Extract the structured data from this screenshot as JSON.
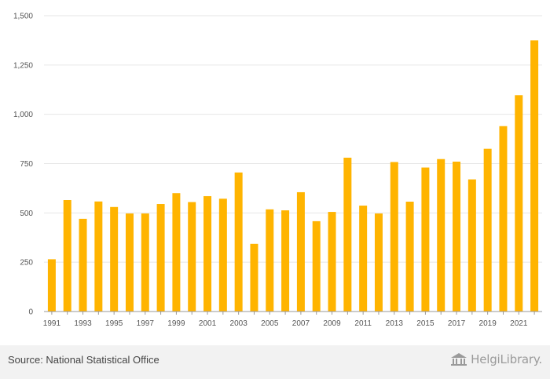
{
  "chart_data": {
    "type": "bar",
    "categories": [
      "1991",
      "1992",
      "1993",
      "1994",
      "1995",
      "1996",
      "1997",
      "1998",
      "1999",
      "2000",
      "2001",
      "2002",
      "2003",
      "2004",
      "2005",
      "2006",
      "2007",
      "2008",
      "2009",
      "2010",
      "2011",
      "2012",
      "2013",
      "2014",
      "2015",
      "2016",
      "2017",
      "2018",
      "2019",
      "2020",
      "2021",
      "2022"
    ],
    "values": [
      265,
      565,
      470,
      558,
      530,
      497,
      497,
      545,
      600,
      555,
      585,
      572,
      705,
      343,
      518,
      513,
      605,
      458,
      505,
      780,
      537,
      497,
      758,
      557,
      730,
      773,
      760,
      670,
      825,
      940,
      1097,
      1375
    ],
    "x_tick_labels": [
      "1991",
      "1993",
      "1995",
      "1997",
      "1999",
      "2001",
      "2003",
      "2005",
      "2007",
      "2009",
      "2011",
      "2013",
      "2015",
      "2017",
      "2019",
      "2021"
    ],
    "y_ticks": [
      0,
      250,
      500,
      750,
      1000,
      1250,
      1500
    ],
    "y_tick_labels": [
      "0",
      "250",
      "500",
      "750",
      "1,000",
      "1,250",
      "1,500"
    ],
    "ylim": [
      0,
      1500
    ],
    "grid": true,
    "bar_color": "#ffb400",
    "title": "",
    "xlabel": "",
    "ylabel": ""
  },
  "footer": {
    "source": "Source: National Statistical Office",
    "brand": "HelgiLibrary."
  },
  "colors": {
    "grid": "#e6e6e6",
    "axis": "#999999",
    "footer_bg": "#f2f2f2"
  }
}
